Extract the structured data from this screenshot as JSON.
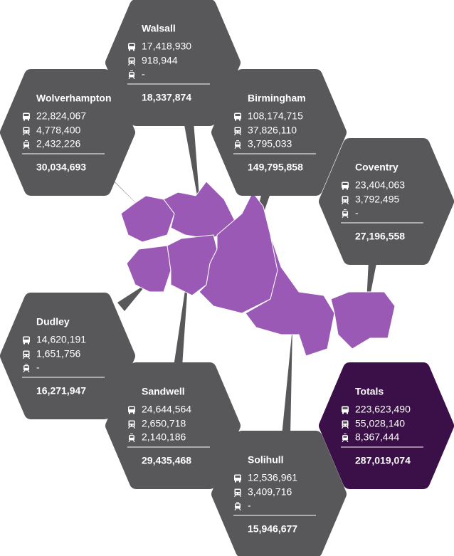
{
  "regions": [
    {
      "name": "Walsall",
      "bus": "17,418,930",
      "rail": "918,944",
      "tram": "-",
      "total": "18,337,874"
    },
    {
      "name": "Wolverhampton",
      "bus": "22,824,067",
      "rail": "4,778,400",
      "tram": "2,432,226",
      "total": "30,034,693"
    },
    {
      "name": "Birmingham",
      "bus": "108,174,715",
      "rail": "37,826,110",
      "tram": "3,795,033",
      "total": "149,795,858"
    },
    {
      "name": "Coventry",
      "bus": "23,404,063",
      "rail": "3,792,495",
      "tram": "-",
      "total": "27,196,558"
    },
    {
      "name": "Dudley",
      "bus": "14,620,191",
      "rail": "1,651,756",
      "tram": "-",
      "total": "16,271,947"
    },
    {
      "name": "Sandwell",
      "bus": "24,644,564",
      "rail": "2,650,718",
      "tram": "2,140,186",
      "total": "29,435,468"
    },
    {
      "name": "Solihull",
      "bus": "12,536,961",
      "rail": "3,409,716",
      "tram": "-",
      "total": "15,946,677"
    }
  ],
  "totals": {
    "name": "Totals",
    "bus": "223,623,490",
    "rail": "55,028,140",
    "tram": "8,367,444",
    "total": "287,019,074"
  }
}
